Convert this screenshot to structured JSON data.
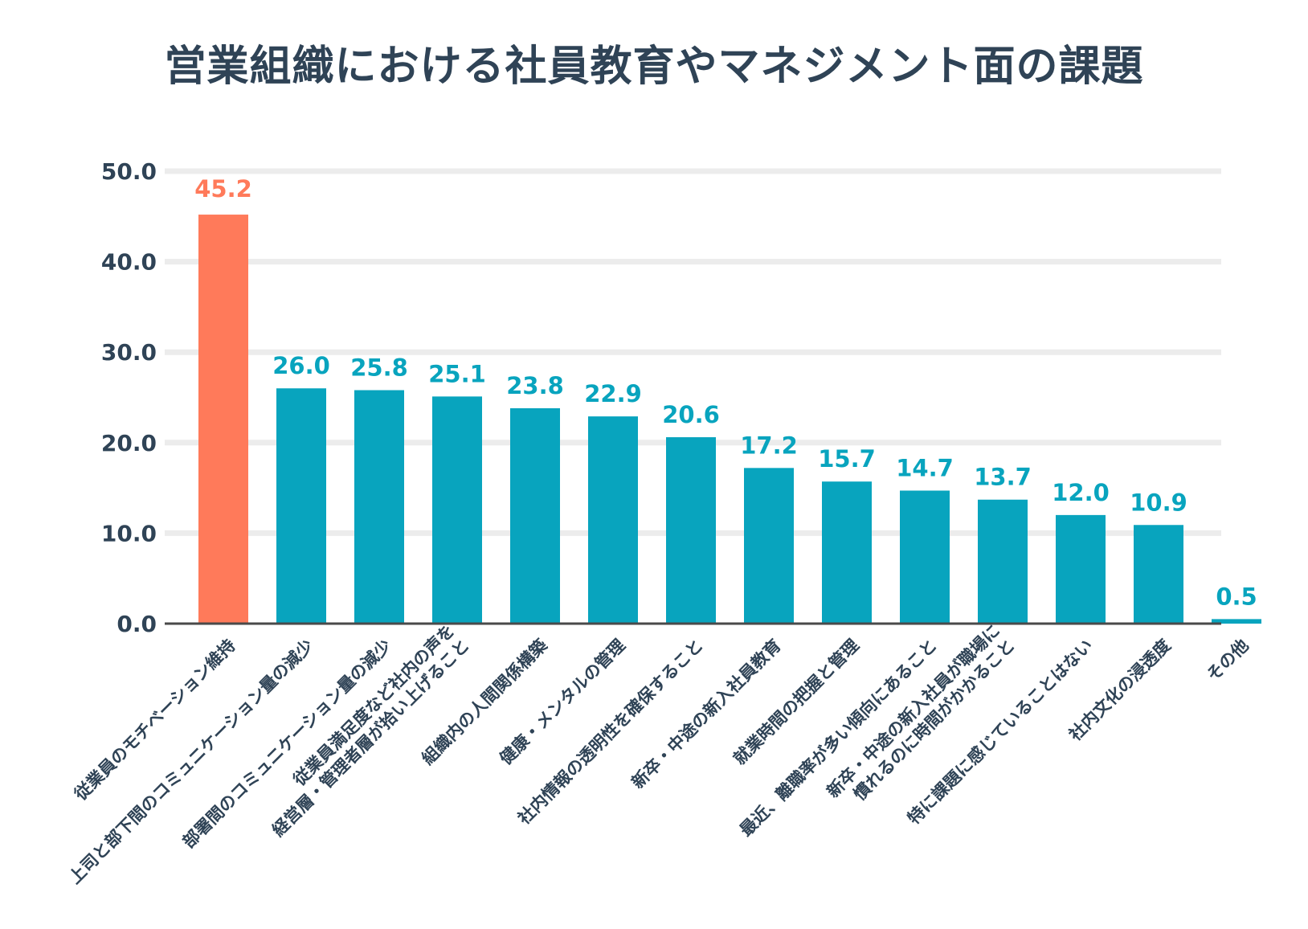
{
  "chart_data": {
    "type": "bar",
    "title": "営業組織における社員教育やマネジメント面の課題",
    "xlabel": "",
    "ylabel": "",
    "ylim": [
      0,
      50
    ],
    "yticks": [
      "0.0",
      "10.0",
      "20.0",
      "30.0",
      "40.0",
      "50.0"
    ],
    "grid": true,
    "categories": [
      [
        "従業員のモチベーション維持"
      ],
      [
        "上司と部下間のコミュニケーション量の減少"
      ],
      [
        "部署間のコミュニケーション量の減少"
      ],
      [
        "従業員満足度など社内の声を",
        "経営層・管理者層が拾い上げること"
      ],
      [
        "組織内の人間関係構築"
      ],
      [
        "健康・メンタルの管理"
      ],
      [
        "社内情報の透明性を確保すること"
      ],
      [
        "新卒・中途の新入社員教育"
      ],
      [
        "就業時間の把握と管理"
      ],
      [
        "最近、離職率が多い傾向にあること"
      ],
      [
        "新卒・中途の新入社員が職場に",
        "慣れるのに時間がかかること"
      ],
      [
        "特に課題に感じていることはない"
      ],
      [
        "社内文化の浸透度"
      ],
      [
        "その他"
      ]
    ],
    "values": [
      45.2,
      26.0,
      25.8,
      25.1,
      23.8,
      22.9,
      20.6,
      17.2,
      15.7,
      14.7,
      13.7,
      12.0,
      10.9,
      0.5
    ],
    "value_labels": [
      "45.2",
      "26.0",
      "25.8",
      "25.1",
      "23.8",
      "22.9",
      "20.6",
      "17.2",
      "15.7",
      "14.7",
      "13.7",
      "12.0",
      "10.9",
      "0.5"
    ],
    "highlight_index": 0
  },
  "colors": {
    "highlight": "#ff7a5a",
    "bar": "#08a4be",
    "text": "#2f4356",
    "grid": "#ececec",
    "axis": "#4a4a4a"
  }
}
